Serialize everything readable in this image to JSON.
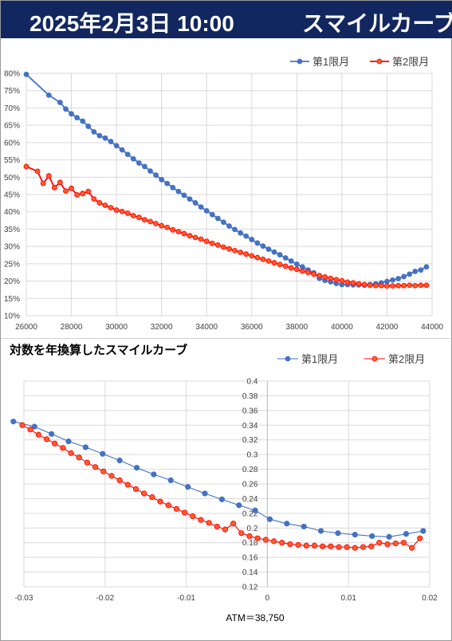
{
  "header": {
    "date": "2025年2月3日 10:00",
    "title": "スマイルカーブ"
  },
  "colors": {
    "header_bg": "#12275f",
    "series1": "#4472c4",
    "series2": "#ff0000",
    "marker2_fill": "#ff5a2a",
    "grid": "#d9d9d9"
  },
  "chart_data": [
    {
      "type": "line",
      "title": "",
      "xlabel": "",
      "ylabel": "",
      "xlim": [
        26000,
        44000
      ],
      "ylim": [
        0.1,
        0.8
      ],
      "xticks": [
        "26000",
        "28000",
        "30000",
        "32000",
        "34000",
        "36000",
        "38000",
        "40000",
        "42000",
        "44000"
      ],
      "yticks": [
        "10%",
        "15%",
        "20%",
        "25%",
        "30%",
        "35%",
        "40%",
        "45%",
        "50%",
        "55%",
        "60%",
        "65%",
        "70%",
        "75%",
        "80%"
      ],
      "grid": true,
      "legend_position": "top-right",
      "series": [
        {
          "name": "第1限月",
          "x": [
            26000,
            27000,
            27500,
            27750,
            28000,
            28250,
            28500,
            28750,
            29000,
            29250,
            29500,
            29750,
            30000,
            30250,
            30500,
            30750,
            31000,
            31250,
            31500,
            31750,
            32000,
            32250,
            32500,
            32750,
            33000,
            33250,
            33500,
            33750,
            34000,
            34250,
            34500,
            34750,
            35000,
            35250,
            35500,
            35750,
            36000,
            36250,
            36500,
            36750,
            37000,
            37250,
            37500,
            37750,
            38000,
            38250,
            38500,
            38750,
            39000,
            39250,
            39500,
            39750,
            40000,
            40250,
            40500,
            40750,
            41000,
            41250,
            41500,
            41750,
            42000,
            42250,
            42500,
            42750,
            43000,
            43250,
            43500,
            43750
          ],
          "y": [
            0.797,
            0.737,
            0.716,
            0.697,
            0.683,
            0.672,
            0.662,
            0.647,
            0.631,
            0.62,
            0.613,
            0.603,
            0.591,
            0.579,
            0.566,
            0.553,
            0.541,
            0.531,
            0.518,
            0.506,
            0.493,
            0.482,
            0.47,
            0.459,
            0.448,
            0.437,
            0.426,
            0.414,
            0.403,
            0.392,
            0.381,
            0.37,
            0.359,
            0.349,
            0.339,
            0.33,
            0.32,
            0.31,
            0.301,
            0.292,
            0.284,
            0.276,
            0.267,
            0.258,
            0.249,
            0.241,
            0.232,
            0.224,
            0.208,
            0.202,
            0.198,
            0.193,
            0.19,
            0.19,
            0.189,
            0.189,
            0.188,
            0.19,
            0.192,
            0.195,
            0.199,
            0.203,
            0.207,
            0.213,
            0.22,
            0.228,
            0.232,
            0.241
          ]
        },
        {
          "name": "第2限月",
          "x": [
            26000,
            26500,
            26750,
            27000,
            27250,
            27500,
            27750,
            28000,
            28250,
            28500,
            28750,
            29000,
            29250,
            29500,
            29750,
            30000,
            30250,
            30500,
            30750,
            31000,
            31250,
            31500,
            31750,
            32000,
            32250,
            32500,
            32750,
            33000,
            33250,
            33500,
            33750,
            34000,
            34250,
            34500,
            34750,
            35000,
            35250,
            35500,
            35750,
            36000,
            36250,
            36500,
            36750,
            37000,
            37250,
            37500,
            37750,
            38000,
            38250,
            38500,
            38750,
            39000,
            39250,
            39500,
            39750,
            40000,
            40250,
            40500,
            40750,
            41000,
            41250,
            41500,
            41750,
            42000,
            42250,
            42500,
            42750,
            43000,
            43250,
            43500,
            43750
          ],
          "y": [
            0.531,
            0.517,
            0.482,
            0.504,
            0.47,
            0.485,
            0.46,
            0.468,
            0.449,
            0.453,
            0.459,
            0.437,
            0.426,
            0.419,
            0.412,
            0.405,
            0.401,
            0.396,
            0.389,
            0.384,
            0.377,
            0.372,
            0.366,
            0.36,
            0.355,
            0.348,
            0.343,
            0.337,
            0.331,
            0.326,
            0.321,
            0.315,
            0.309,
            0.304,
            0.298,
            0.293,
            0.288,
            0.283,
            0.278,
            0.273,
            0.268,
            0.263,
            0.258,
            0.253,
            0.248,
            0.243,
            0.238,
            0.234,
            0.229,
            0.225,
            0.22,
            0.216,
            0.212,
            0.208,
            0.204,
            0.201,
            0.197,
            0.195,
            0.192,
            0.19,
            0.188,
            0.187,
            0.187,
            0.186,
            0.186,
            0.187,
            0.187,
            0.188,
            0.187,
            0.188,
            0.188
          ]
        }
      ]
    },
    {
      "type": "line",
      "title": "対数を年換算したスマイルカーブ",
      "xlabel": "ATM＝38,750",
      "ylabel": "",
      "xlim": [
        -0.03,
        0.02
      ],
      "ylim": [
        0.12,
        0.4
      ],
      "xticks": [
        "-0.03",
        "-0.02",
        "-0.01",
        "0",
        "0.01",
        "0.02"
      ],
      "yticks": [
        "0.12",
        "0.14",
        "0.16",
        "0.18",
        "0.2",
        "0.22",
        "0.24",
        "0.26",
        "0.28",
        "0.3",
        "0.32",
        "0.34",
        "0.36",
        "0.38",
        "0.4"
      ],
      "grid": true,
      "legend_position": "top-right",
      "series": [
        {
          "name": "第1限月",
          "x": [
            -0.0313,
            -0.0287,
            -0.0266,
            -0.0245,
            -0.0224,
            -0.0203,
            -0.0182,
            -0.0161,
            -0.014,
            -0.0119,
            -0.0098,
            -0.0077,
            -0.0056,
            -0.0035,
            -0.0015,
            0.0003,
            0.0024,
            0.0045,
            0.0066,
            0.0087,
            0.0108,
            0.0129,
            0.015,
            0.0171,
            0.0192
          ],
          "y": [
            0.345,
            0.338,
            0.328,
            0.318,
            0.31,
            0.301,
            0.292,
            0.282,
            0.273,
            0.265,
            0.256,
            0.247,
            0.239,
            0.231,
            0.224,
            0.212,
            0.206,
            0.202,
            0.196,
            0.193,
            0.191,
            0.189,
            0.188,
            0.192,
            0.196
          ]
        },
        {
          "name": "第2限月",
          "x": [
            -0.0302,
            -0.0292,
            -0.0282,
            -0.0272,
            -0.0262,
            -0.0252,
            -0.0242,
            -0.0232,
            -0.0222,
            -0.0212,
            -0.0202,
            -0.0192,
            -0.0182,
            -0.0172,
            -0.0162,
            -0.0152,
            -0.0142,
            -0.0132,
            -0.0122,
            -0.0112,
            -0.0102,
            -0.0092,
            -0.0082,
            -0.0072,
            -0.0062,
            -0.0052,
            -0.0042,
            -0.0032,
            -0.0022,
            -0.0012,
            -0.0002,
            0.0008,
            0.0018,
            0.0028,
            0.0038,
            0.0048,
            0.0058,
            0.0068,
            0.0078,
            0.0088,
            0.0098,
            0.0108,
            0.0118,
            0.0128,
            0.0138,
            0.0148,
            0.0158,
            0.0168,
            0.0178,
            0.0188
          ],
          "y": [
            0.34,
            0.334,
            0.327,
            0.321,
            0.315,
            0.309,
            0.302,
            0.296,
            0.289,
            0.283,
            0.277,
            0.271,
            0.265,
            0.259,
            0.253,
            0.247,
            0.242,
            0.236,
            0.231,
            0.226,
            0.221,
            0.216,
            0.211,
            0.207,
            0.202,
            0.198,
            0.206,
            0.193,
            0.189,
            0.186,
            0.184,
            0.182,
            0.18,
            0.178,
            0.177,
            0.176,
            0.176,
            0.175,
            0.175,
            0.174,
            0.174,
            0.173,
            0.174,
            0.175,
            0.18,
            0.178,
            0.179,
            0.18,
            0.173,
            0.186
          ]
        }
      ]
    }
  ]
}
